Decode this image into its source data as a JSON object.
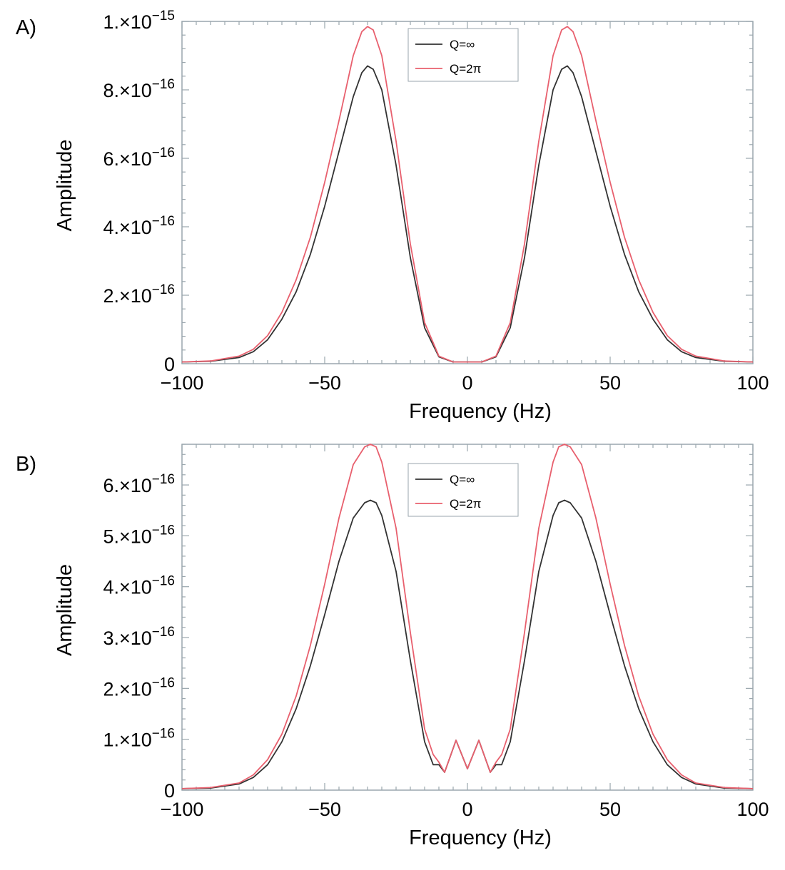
{
  "chart_data": [
    {
      "type": "line",
      "panel_label": "A)",
      "xlabel": "Frequency (Hz)",
      "ylabel": "Amplitude",
      "xlim": [
        -100,
        100
      ],
      "ylim": [
        0,
        1e-15
      ],
      "xticks": [
        -100,
        -50,
        0,
        50,
        100
      ],
      "xtick_labels": [
        "−100",
        "−50",
        "0",
        "50",
        "100"
      ],
      "yticks": [
        0,
        2e-16,
        4e-16,
        6e-16,
        8e-16,
        1e-15
      ],
      "ytick_labels": [
        {
          "mantissa": "0",
          "exp": ""
        },
        {
          "mantissa": "2.×10",
          "exp": "−16"
        },
        {
          "mantissa": "4.×10",
          "exp": "−16"
        },
        {
          "mantissa": "6.×10",
          "exp": "−16"
        },
        {
          "mantissa": "8.×10",
          "exp": "−16"
        },
        {
          "mantissa": "1.×10",
          "exp": "−15"
        }
      ],
      "legend_position": "top-center",
      "grid": false,
      "series": [
        {
          "name": "Q=∞",
          "color": "#333333",
          "x": [
            -100,
            -90,
            -80,
            -75,
            -70,
            -65,
            -60,
            -55,
            -50,
            -45,
            -40,
            -37,
            -35,
            -33,
            -30,
            -25,
            -20,
            -15,
            -10,
            -5,
            0,
            5,
            10,
            15,
            20,
            25,
            30,
            33,
            35,
            37,
            40,
            45,
            50,
            55,
            60,
            65,
            70,
            75,
            80,
            90,
            100
          ],
          "y": [
            5e-18,
            7e-18,
            1.8e-17,
            3.5e-17,
            7e-17,
            1.3e-16,
            2.1e-16,
            3.2e-16,
            4.6e-16,
            6.2e-16,
            7.8e-16,
            8.5e-16,
            8.7e-16,
            8.6e-16,
            8e-16,
            5.8e-16,
            3.1e-16,
            1.05e-16,
            2e-17,
            5e-18,
            5e-18,
            5e-18,
            2e-17,
            1.05e-16,
            3.1e-16,
            5.8e-16,
            8e-16,
            8.6e-16,
            8.7e-16,
            8.5e-16,
            7.8e-16,
            6.2e-16,
            4.6e-16,
            3.2e-16,
            2.1e-16,
            1.3e-16,
            7e-17,
            3.5e-17,
            1.8e-17,
            7e-18,
            5e-18
          ]
        },
        {
          "name": "Q=2π",
          "color": "#e8606e",
          "x": [
            -100,
            -90,
            -80,
            -75,
            -70,
            -65,
            -60,
            -55,
            -50,
            -45,
            -40,
            -37,
            -35,
            -33,
            -30,
            -25,
            -20,
            -15,
            -10,
            -5,
            0,
            5,
            10,
            15,
            20,
            25,
            30,
            33,
            35,
            37,
            40,
            45,
            50,
            55,
            60,
            65,
            70,
            75,
            80,
            90,
            100
          ],
          "y": [
            5e-18,
            8e-18,
            2.2e-17,
            4.2e-17,
            8.2e-17,
            1.5e-16,
            2.45e-16,
            3.7e-16,
            5.3e-16,
            7.1e-16,
            9e-16,
            9.7e-16,
            9.85e-16,
            9.75e-16,
            9e-16,
            6.5e-16,
            3.5e-16,
            1.2e-16,
            2.2e-17,
            5e-18,
            5e-18,
            5e-18,
            2.2e-17,
            1.2e-16,
            3.5e-16,
            6.5e-16,
            9e-16,
            9.75e-16,
            9.85e-16,
            9.7e-16,
            9e-16,
            7.1e-16,
            5.3e-16,
            3.7e-16,
            2.45e-16,
            1.5e-16,
            8.2e-17,
            4.2e-17,
            2.2e-17,
            8e-18,
            5e-18
          ]
        }
      ]
    },
    {
      "type": "line",
      "panel_label": "B)",
      "xlabel": "Frequency (Hz)",
      "ylabel": "Amplitude",
      "xlim": [
        -100,
        100
      ],
      "ylim": [
        0,
        6.8e-16
      ],
      "xticks": [
        -100,
        -50,
        0,
        50,
        100
      ],
      "xtick_labels": [
        "−100",
        "−50",
        "0",
        "50",
        "100"
      ],
      "yticks": [
        0,
        1e-16,
        2e-16,
        3e-16,
        4e-16,
        5e-16,
        6e-16
      ],
      "ytick_labels": [
        {
          "mantissa": "0",
          "exp": ""
        },
        {
          "mantissa": "1.×10",
          "exp": "−16"
        },
        {
          "mantissa": "2.×10",
          "exp": "−16"
        },
        {
          "mantissa": "3.×10",
          "exp": "−16"
        },
        {
          "mantissa": "4.×10",
          "exp": "−16"
        },
        {
          "mantissa": "5.×10",
          "exp": "−16"
        },
        {
          "mantissa": "6.×10",
          "exp": "−16"
        }
      ],
      "legend_position": "top-center",
      "grid": false,
      "series": [
        {
          "name": "Q=∞",
          "color": "#333333",
          "x": [
            -100,
            -90,
            -80,
            -75,
            -70,
            -65,
            -60,
            -55,
            -50,
            -45,
            -40,
            -36,
            -34,
            -32,
            -30,
            -25,
            -20,
            -15,
            -12,
            -10,
            -8,
            -4,
            0,
            4,
            8,
            10,
            12,
            15,
            20,
            25,
            30,
            32,
            34,
            36,
            40,
            45,
            50,
            55,
            60,
            65,
            70,
            75,
            80,
            90,
            100
          ],
          "y": [
            3e-18,
            4e-18,
            1.2e-17,
            2.5e-17,
            5e-17,
            9.5e-17,
            1.6e-16,
            2.45e-16,
            3.45e-16,
            4.5e-16,
            5.35e-16,
            5.65e-16,
            5.7e-16,
            5.65e-16,
            5.4e-16,
            4.3e-16,
            2.55e-16,
            9.5e-17,
            5e-17,
            5e-17,
            3.5e-17,
            9.8e-17,
            4.2e-17,
            9.8e-17,
            3.5e-17,
            5e-17,
            5e-17,
            9.5e-17,
            2.55e-16,
            4.3e-16,
            5.4e-16,
            5.65e-16,
            5.7e-16,
            5.65e-16,
            5.35e-16,
            4.5e-16,
            3.45e-16,
            2.45e-16,
            1.6e-16,
            9.5e-17,
            5e-17,
            2.5e-17,
            1.2e-17,
            4e-18,
            3e-18
          ]
        },
        {
          "name": "Q=2π",
          "color": "#e8606e",
          "x": [
            -100,
            -90,
            -80,
            -75,
            -70,
            -65,
            -60,
            -55,
            -50,
            -45,
            -40,
            -36,
            -34,
            -32,
            -30,
            -25,
            -20,
            -15,
            -12,
            -10,
            -8,
            -4,
            0,
            4,
            8,
            10,
            12,
            15,
            20,
            25,
            30,
            32,
            34,
            36,
            40,
            45,
            50,
            55,
            60,
            65,
            70,
            75,
            80,
            90,
            100
          ],
          "y": [
            3e-18,
            5e-18,
            1.4e-17,
            3e-17,
            6e-17,
            1.1e-16,
            1.85e-16,
            2.85e-16,
            4.05e-16,
            5.35e-16,
            6.4e-16,
            6.75e-16,
            6.8e-16,
            6.75e-16,
            6.45e-16,
            5.15e-16,
            3.1e-16,
            1.2e-16,
            7e-17,
            5.5e-17,
            3.5e-17,
            9.8e-17,
            4.2e-17,
            9.8e-17,
            3.5e-17,
            5.5e-17,
            7e-17,
            1.2e-16,
            3.1e-16,
            5.15e-16,
            6.45e-16,
            6.75e-16,
            6.8e-16,
            6.75e-16,
            6.4e-16,
            5.35e-16,
            4.05e-16,
            2.85e-16,
            1.85e-16,
            1.1e-16,
            6e-17,
            3e-17,
            1.4e-17,
            5e-18,
            3e-18
          ]
        }
      ]
    }
  ],
  "colors": {
    "frame": "#9aa6ad",
    "series_a": "#333333",
    "series_b": "#e8606e"
  }
}
